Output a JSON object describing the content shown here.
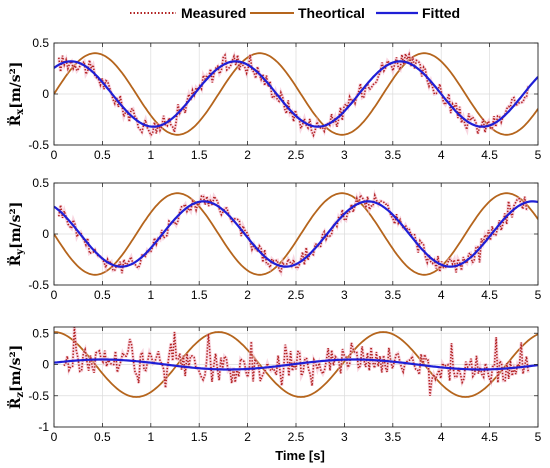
{
  "legend": [
    {
      "label": "Measured",
      "color": "#b22222",
      "style": "dotted"
    },
    {
      "label": "Theortical",
      "color": "#b5651d",
      "style": "solid"
    },
    {
      "label": "Fitted",
      "color": "#1f1fd6",
      "style": "solid"
    }
  ],
  "xlabel": "Time [s]",
  "chart_data": [
    {
      "type": "line",
      "ylabel_main": "R̈",
      "ylabel_sub": "x",
      "ylabel_unit": "[m/s²]",
      "xlim": [
        0,
        5
      ],
      "ylim": [
        -0.5,
        0.5
      ],
      "xticks": [
        0,
        0.5,
        1,
        1.5,
        2,
        2.5,
        3,
        3.5,
        4,
        4.5,
        5
      ],
      "yticks": [
        -0.5,
        0,
        0.5
      ],
      "grid": true,
      "series": [
        {
          "name": "Theortical",
          "kind": "sine",
          "amplitude": 0.4,
          "period": 1.7,
          "phase_shift": 0,
          "offset": 0
        },
        {
          "name": "Fitted",
          "kind": "sine",
          "amplitude": 0.32,
          "period": 1.7,
          "phase_shift": -0.25,
          "offset": 0
        },
        {
          "name": "Measured",
          "kind": "noisy",
          "base_amplitude": 0.32,
          "period": 1.7,
          "phase_shift": -0.25,
          "noise": 0.09,
          "x_range": [
            0.05,
            4.9
          ]
        }
      ]
    },
    {
      "type": "line",
      "ylabel_main": "R̈",
      "ylabel_sub": "y",
      "ylabel_unit": "[m/s²]",
      "xlim": [
        0,
        5
      ],
      "ylim": [
        -0.5,
        0.5
      ],
      "xticks": [
        0,
        0.5,
        1,
        1.5,
        2,
        2.5,
        3,
        3.5,
        4,
        4.5,
        5
      ],
      "yticks": [
        -0.5,
        0,
        0.5
      ],
      "grid": true,
      "series": [
        {
          "name": "Theortical",
          "kind": "sine",
          "amplitude": -0.4,
          "period": 1.7,
          "phase_shift": 0,
          "offset": 0
        },
        {
          "name": "Fitted",
          "kind": "sine",
          "amplitude": -0.32,
          "period": 1.7,
          "phase_shift": 0.27,
          "offset": 0
        },
        {
          "name": "Measured",
          "kind": "noisy",
          "base_amplitude": -0.32,
          "period": 1.7,
          "phase_shift": 0.27,
          "noise": 0.08,
          "x_range": [
            0.05,
            4.9
          ]
        }
      ]
    },
    {
      "type": "line",
      "ylabel_main": "R̈",
      "ylabel_sub": "z",
      "ylabel_unit": "[m/s²]",
      "xlim": [
        0,
        5
      ],
      "ylim": [
        -1,
        0.6
      ],
      "xticks": [
        0,
        0.5,
        1,
        1.5,
        2,
        2.5,
        3,
        3.5,
        4,
        4.5,
        5
      ],
      "yticks": [
        -1,
        -0.5,
        0,
        0.5
      ],
      "grid": true,
      "series": [
        {
          "name": "Theortical",
          "kind": "cosine",
          "amplitude": 0.52,
          "period": 1.7,
          "phase_shift": 0,
          "offset": 0
        },
        {
          "name": "Fitted",
          "kind": "sine",
          "amplitude": 0.08,
          "period": 2.6,
          "phase_shift": -0.15,
          "offset": 0
        },
        {
          "name": "Measured",
          "kind": "spiky",
          "base_amplitude": 0.08,
          "period": 2.6,
          "phase_shift": -0.15,
          "noise": 0.22,
          "x_range": [
            0.1,
            4.9
          ]
        }
      ]
    }
  ]
}
